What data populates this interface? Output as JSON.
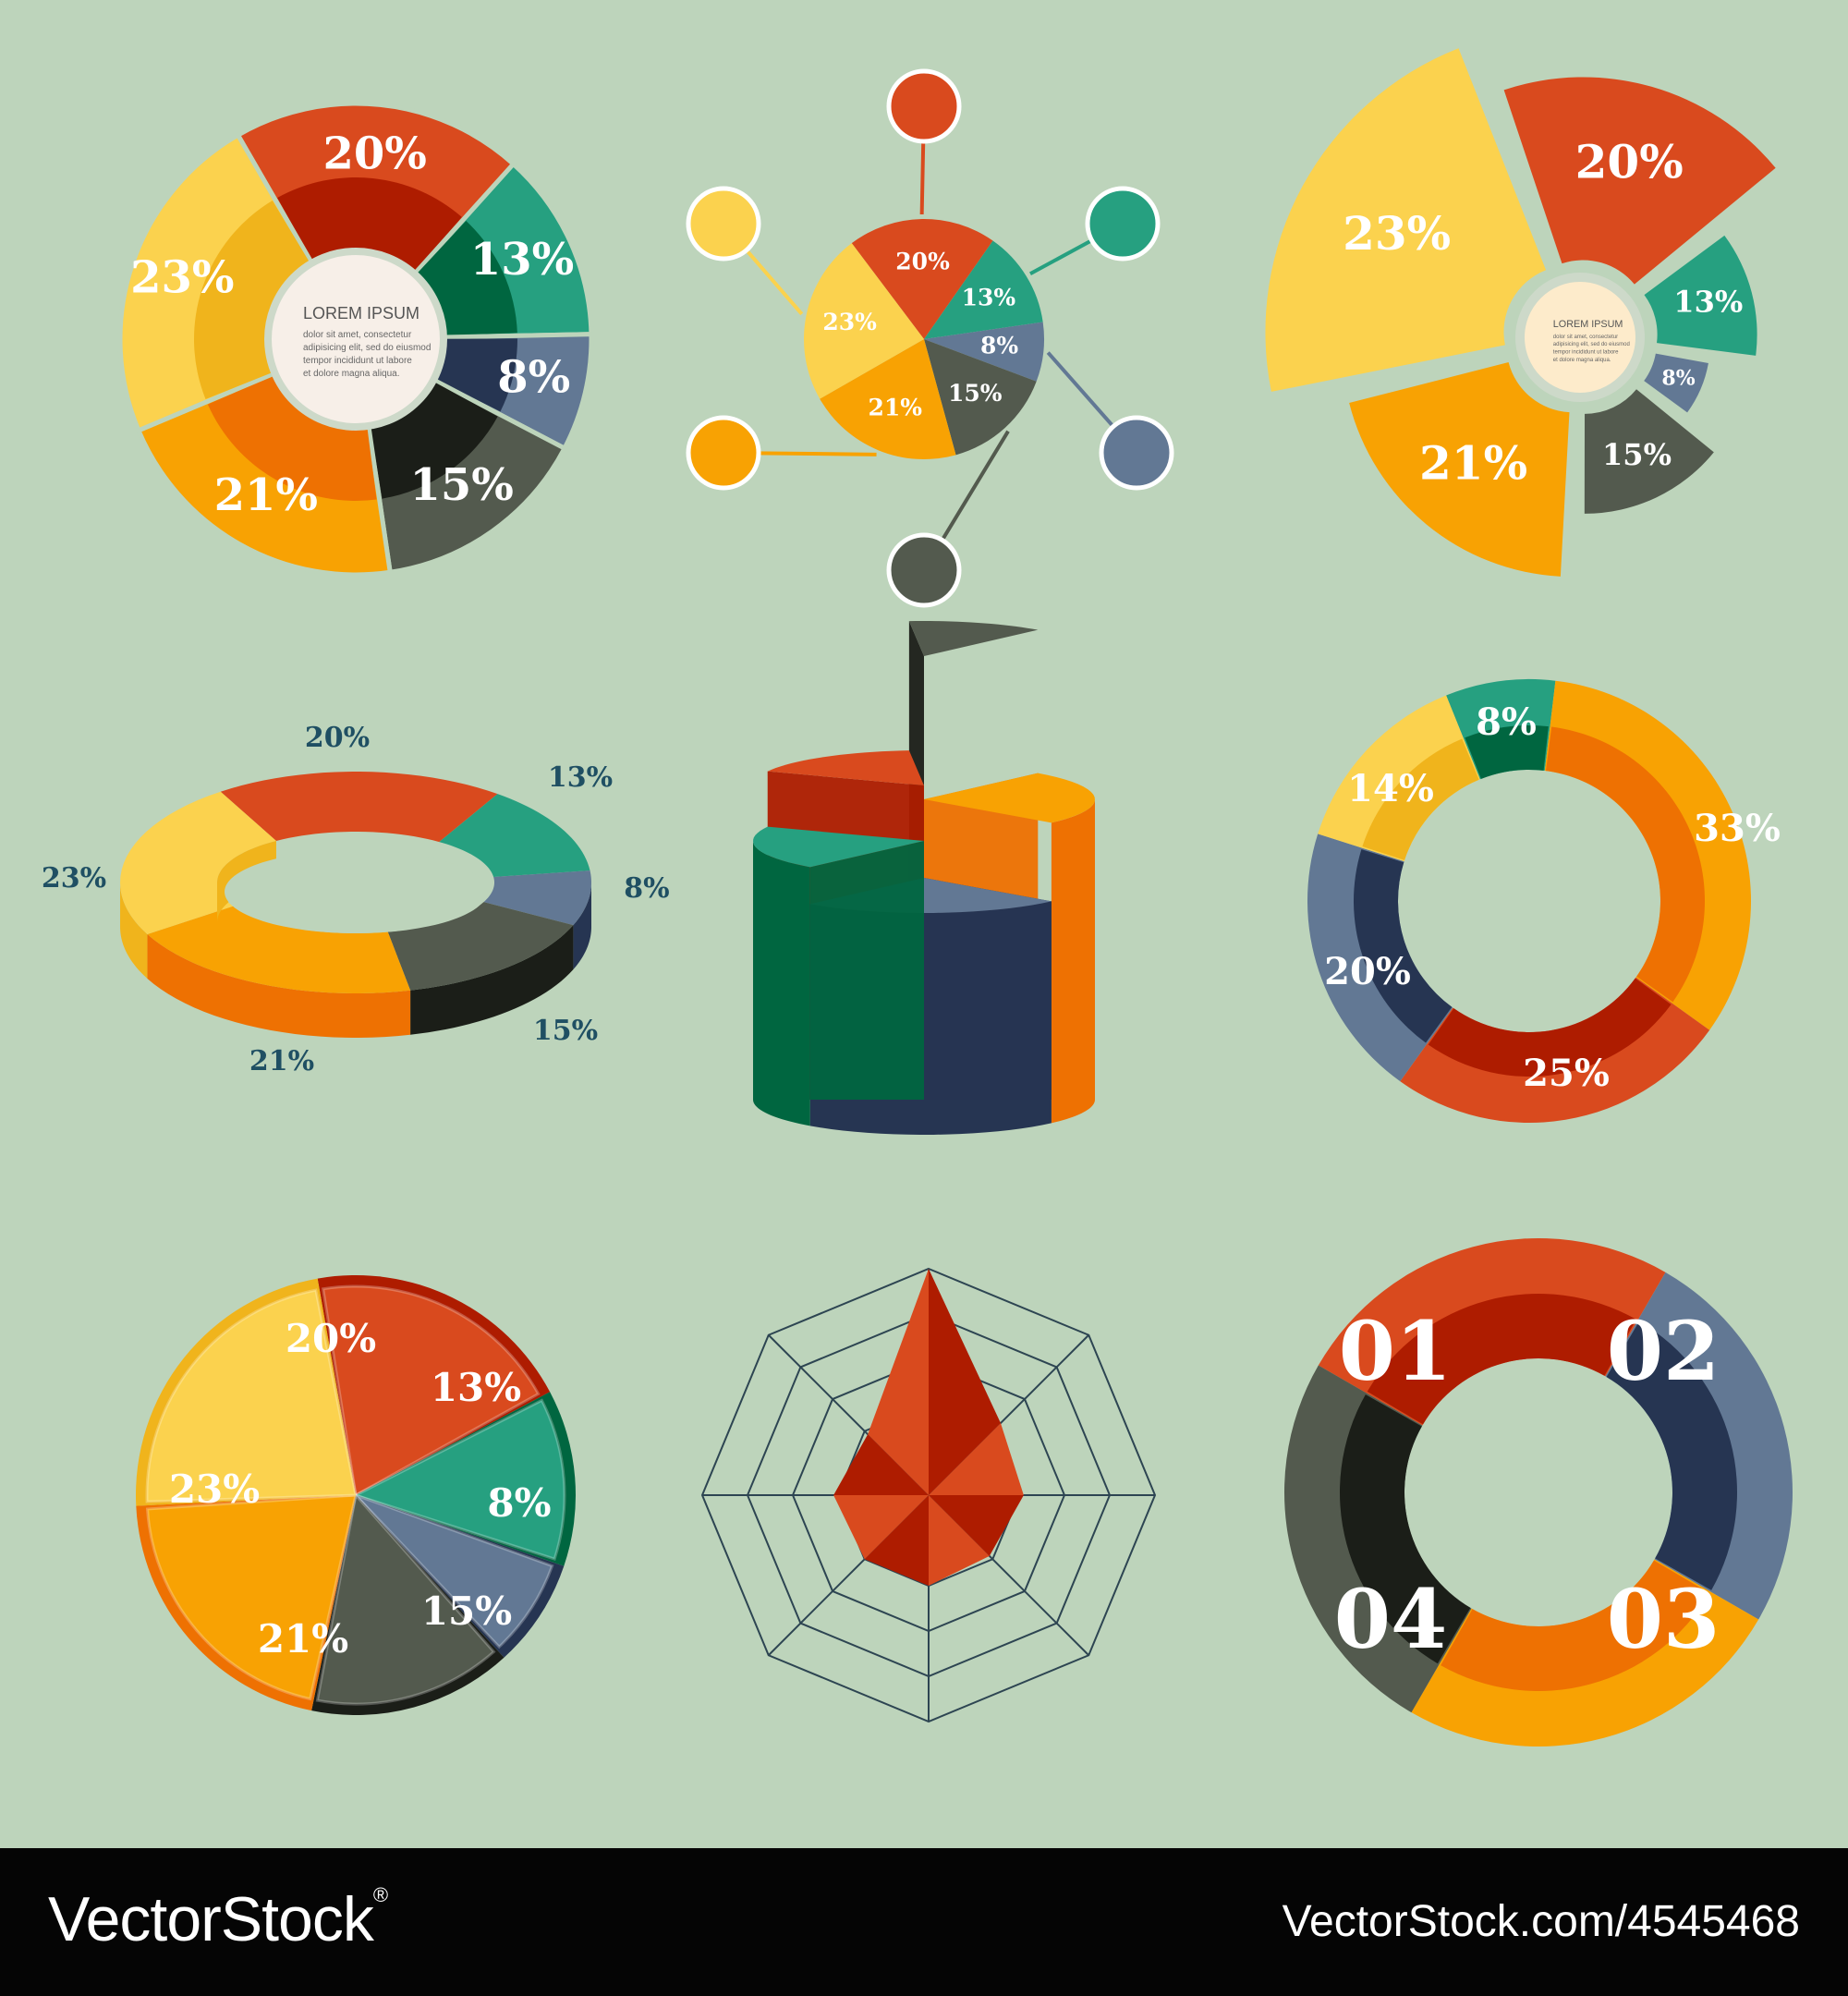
{
  "palette": {
    "red": "#d94a1e",
    "red_dark": "#ae1c00",
    "teal": "#26a080",
    "green_dark": "#006640",
    "slate": "#627894",
    "navy": "#263552",
    "gray": "#535a4e",
    "black": "#1b1e18",
    "yellow": "#fbd24e",
    "yellow_dark": "#f0b41c",
    "orange": "#f8a203",
    "orange_dark": "#ee7102",
    "cream": "#f7efe8",
    "cream2": "#fdebcb",
    "node_ring": "#ffffff",
    "label_blue": "#1f4f63",
    "background": "#bdd4bb"
  },
  "chart_data": [
    {
      "id": "donut-lorem",
      "type": "pie",
      "slices": [
        {
          "label": "20%",
          "value": 20,
          "color": "red"
        },
        {
          "label": "13%",
          "value": 13,
          "color": "teal"
        },
        {
          "label": "8%",
          "value": 8,
          "color": "slate"
        },
        {
          "label": "15%",
          "value": 15,
          "color": "gray"
        },
        {
          "label": "21%",
          "value": 21,
          "color": "orange"
        },
        {
          "label": "23%",
          "value": 23,
          "color": "yellow"
        }
      ],
      "center_title": "LOREM IPSUM",
      "center_text": [
        "dolor sit amet, consectetur",
        "adipisicing elit, sed do eiusmod",
        "tempor incididunt ut labore",
        "et dolore magna aliqua."
      ]
    },
    {
      "id": "pie-network",
      "type": "pie",
      "slices": [
        {
          "label": "20%",
          "value": 20,
          "color": "red"
        },
        {
          "label": "13%",
          "value": 13,
          "color": "teal"
        },
        {
          "label": "8%",
          "value": 8,
          "color": "slate"
        },
        {
          "label": "15%",
          "value": 15,
          "color": "gray"
        },
        {
          "label": "21%",
          "value": 21,
          "color": "orange"
        },
        {
          "label": "23%",
          "value": 23,
          "color": "yellow"
        }
      ]
    },
    {
      "id": "exploded-sectors",
      "type": "pie",
      "slices": [
        {
          "label": "20%",
          "value": 20,
          "color": "red"
        },
        {
          "label": "13%",
          "value": 13,
          "color": "teal"
        },
        {
          "label": "8%",
          "value": 8,
          "color": "slate"
        },
        {
          "label": "15%",
          "value": 15,
          "color": "gray"
        },
        {
          "label": "21%",
          "value": 21,
          "color": "orange"
        },
        {
          "label": "23%",
          "value": 23,
          "color": "yellow"
        }
      ],
      "center_title": "LOREM IPSUM",
      "center_text": [
        "dolor sit amet, consectetur",
        "adipisicing elit, sed do eiusmod",
        "tempor incididunt ut labore",
        "et dolore magna aliqua."
      ]
    },
    {
      "id": "ring-3d",
      "type": "pie",
      "slices": [
        {
          "label": "20%",
          "value": 20,
          "color": "red"
        },
        {
          "label": "13%",
          "value": 13,
          "color": "teal"
        },
        {
          "label": "8%",
          "value": 8,
          "color": "slate"
        },
        {
          "label": "15%",
          "value": 15,
          "color": "gray"
        },
        {
          "label": "21%",
          "value": 21,
          "color": "orange"
        },
        {
          "label": "23%",
          "value": 23,
          "color": "yellow"
        }
      ]
    },
    {
      "id": "stacked-pie-3d",
      "type": "pie",
      "slices": [
        {
          "value": 13,
          "color": "gray"
        },
        {
          "value": 25,
          "color": "orange"
        },
        {
          "value": 25,
          "color": "slate"
        },
        {
          "value": 20,
          "color": "teal"
        },
        {
          "value": 17,
          "color": "red"
        }
      ]
    },
    {
      "id": "donut-percent",
      "type": "pie",
      "slices": [
        {
          "label": "8%",
          "value": 8,
          "color": "teal"
        },
        {
          "label": "33%",
          "value": 33,
          "color": "orange"
        },
        {
          "label": "25%",
          "value": 25,
          "color": "red"
        },
        {
          "label": "20%",
          "value": 20,
          "color": "slate"
        },
        {
          "label": "14%",
          "value": 14,
          "color": "yellow"
        }
      ]
    },
    {
      "id": "pie-bevel",
      "type": "pie",
      "slices": [
        {
          "label": "20%",
          "value": 20,
          "color": "red"
        },
        {
          "label": "13%",
          "value": 13,
          "color": "teal"
        },
        {
          "label": "8%",
          "value": 8,
          "color": "slate"
        },
        {
          "label": "15%",
          "value": 15,
          "color": "gray"
        },
        {
          "label": "21%",
          "value": 21,
          "color": "orange"
        },
        {
          "label": "23%",
          "value": 23,
          "color": "yellow"
        }
      ]
    },
    {
      "id": "radar",
      "type": "radar",
      "levels": 5,
      "axes": 8,
      "values": [
        1.0,
        0.45,
        0.42,
        0.38,
        0.4,
        0.4,
        0.42,
        0.38
      ],
      "color": "red"
    },
    {
      "id": "donut-steps",
      "type": "pie",
      "slices": [
        {
          "label": "01",
          "value": 25,
          "color": "red"
        },
        {
          "label": "02",
          "value": 25,
          "color": "slate"
        },
        {
          "label": "03",
          "value": 25,
          "color": "orange"
        },
        {
          "label": "04",
          "value": 25,
          "color": "gray"
        }
      ]
    }
  ],
  "footer": {
    "brand": "VectorStock",
    "registered": "®",
    "image_ref": "VectorStock.com/4545468"
  }
}
